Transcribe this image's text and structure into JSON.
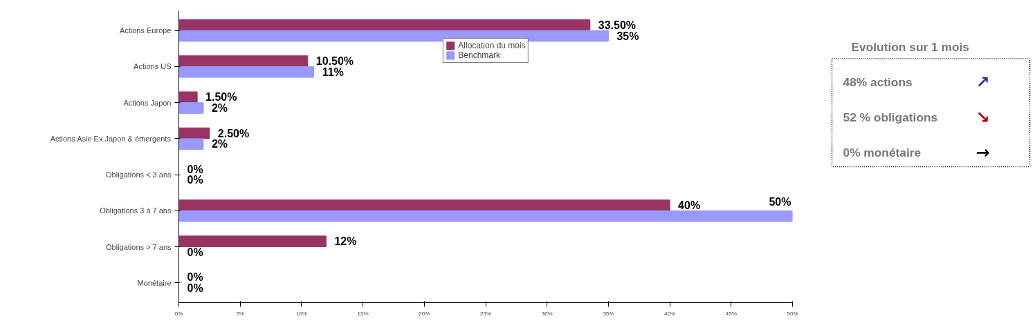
{
  "chart_data": {
    "type": "bar",
    "orientation": "horizontal",
    "categories": [
      "Actions Europe",
      "Actions US",
      "Actions Japon",
      "Actions Asie Ex Japon & émergents",
      "Obligations < 3 ans",
      "Obligations 3 à 7 ans",
      "Obligations > 7 ans",
      "Monétaire"
    ],
    "series": [
      {
        "name": "Allocation du mois",
        "color": "#993366",
        "values": [
          33.5,
          10.5,
          1.5,
          2.5,
          0,
          40,
          12,
          0
        ],
        "value_labels": [
          "33.50%",
          "10.50%",
          "1.50%",
          "2.50%",
          "0%",
          "40%",
          "12%",
          "0%"
        ]
      },
      {
        "name": "Benchmark",
        "color": "#9999ff",
        "values": [
          35,
          11,
          2,
          2,
          0,
          50,
          0,
          0
        ],
        "value_labels": [
          "35%",
          "11%",
          "2%",
          "2%",
          "0%",
          "50%",
          "0%",
          "0%"
        ]
      }
    ],
    "xlim": [
      0,
      50
    ],
    "xticks": [
      {
        "value": 0,
        "label": "0%"
      },
      {
        "value": 5,
        "label": "5%"
      },
      {
        "value": 10,
        "label": "10%"
      },
      {
        "value": 15,
        "label": "15%"
      },
      {
        "value": 20,
        "label": "20%"
      },
      {
        "value": 25,
        "label": "25%"
      },
      {
        "value": 30,
        "label": "30%"
      },
      {
        "value": 35,
        "label": "35%"
      },
      {
        "value": 40,
        "label": "40%"
      },
      {
        "value": 45,
        "label": "45%"
      },
      {
        "value": 50,
        "label": "50%"
      }
    ],
    "grid": false,
    "legend": "top",
    "annotations": [
      "Evolution sur 1 mois",
      "48% actions",
      "↗",
      "52 % obligations",
      "↘",
      "0%  monétaire",
      "→"
    ]
  }
}
